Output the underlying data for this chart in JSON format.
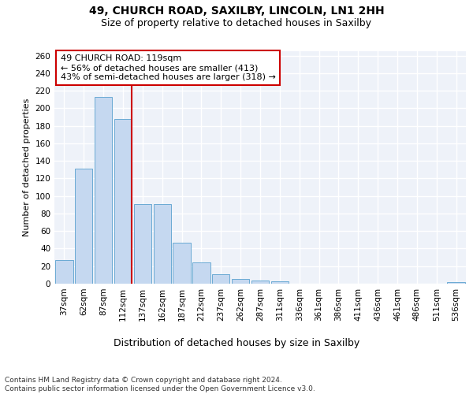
{
  "title1": "49, CHURCH ROAD, SAXILBY, LINCOLN, LN1 2HH",
  "title2": "Size of property relative to detached houses in Saxilby",
  "xlabel": "Distribution of detached houses by size in Saxilby",
  "ylabel": "Number of detached properties",
  "categories": [
    "37sqm",
    "62sqm",
    "87sqm",
    "112sqm",
    "137sqm",
    "162sqm",
    "187sqm",
    "212sqm",
    "237sqm",
    "262sqm",
    "287sqm",
    "311sqm",
    "336sqm",
    "361sqm",
    "386sqm",
    "411sqm",
    "436sqm",
    "461sqm",
    "486sqm",
    "511sqm",
    "536sqm"
  ],
  "values": [
    27,
    131,
    213,
    188,
    91,
    91,
    47,
    24,
    11,
    5,
    4,
    3,
    0,
    0,
    0,
    0,
    0,
    0,
    0,
    0,
    2
  ],
  "bar_color": "#c5d8f0",
  "bar_edge_color": "#6aaad4",
  "vline_x_index": 3,
  "vline_color": "#cc0000",
  "annotation_lines": [
    "49 CHURCH ROAD: 119sqm",
    "← 56% of detached houses are smaller (413)",
    "43% of semi-detached houses are larger (318) →"
  ],
  "annotation_box_color": "#ffffff",
  "annotation_box_edge_color": "#cc0000",
  "ylim": [
    0,
    265
  ],
  "yticks": [
    0,
    20,
    40,
    60,
    80,
    100,
    120,
    140,
    160,
    180,
    200,
    220,
    240,
    260
  ],
  "footnote": "Contains HM Land Registry data © Crown copyright and database right 2024.\nContains public sector information licensed under the Open Government Licence v3.0.",
  "bg_color": "#eef2f9",
  "grid_color": "#ffffff",
  "title1_fontsize": 10,
  "title2_fontsize": 9,
  "xlabel_fontsize": 9,
  "ylabel_fontsize": 8,
  "tick_fontsize": 7.5,
  "annotation_fontsize": 8,
  "footnote_fontsize": 6.5
}
